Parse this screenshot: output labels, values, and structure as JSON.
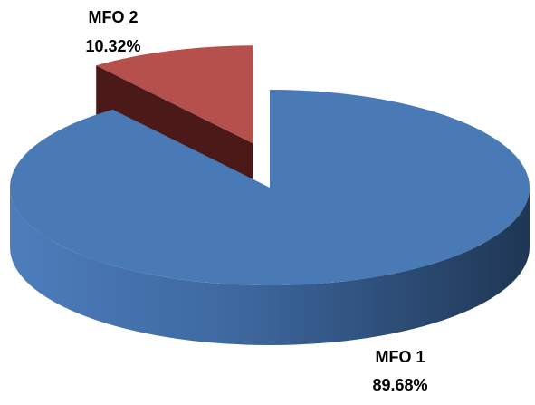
{
  "chart_data": {
    "type": "pie",
    "title": "",
    "slices": [
      {
        "label": "MFO 1",
        "value": 89.68,
        "value_label": "89.68%",
        "color": "#4a7ab5",
        "exploded": false
      },
      {
        "label": "MFO 2",
        "value": 10.32,
        "value_label": "10.32%",
        "color": "#b5504d",
        "exploded": true
      }
    ],
    "style": "3d",
    "legend": "none"
  }
}
